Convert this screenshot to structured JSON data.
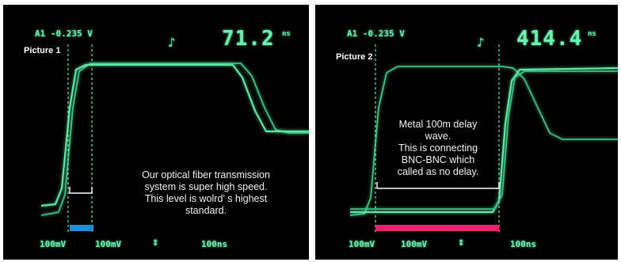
{
  "colors": {
    "trace": "#5fe6a6",
    "bar_1": "#1e90d6",
    "bar_2": "#e8246e"
  },
  "panel_1": {
    "label": "Picture 1",
    "readout_channel": "A1 -0.235 V",
    "readout_value": "71.2",
    "readout_unit": "ns",
    "caption": [
      "Our optical fiber transmission",
      "system is super high speed.",
      "This level is wolrd’ s highest",
      "standard."
    ],
    "bottom": {
      "ch1": "100mV",
      "ch2": "100mV",
      "time": "100ns"
    }
  },
  "panel_2": {
    "label": "Picture 2",
    "readout_channel": "A1 -0.235 V",
    "readout_value": "414.4",
    "readout_unit": "ns",
    "caption": [
      "Metal 100m delay",
      "wave.",
      "This is connecting",
      "BNC-BNC which",
      "called as no delay."
    ],
    "bottom": {
      "ch1": "100mV",
      "ch2": "100mV",
      "time": "100ns"
    }
  }
}
